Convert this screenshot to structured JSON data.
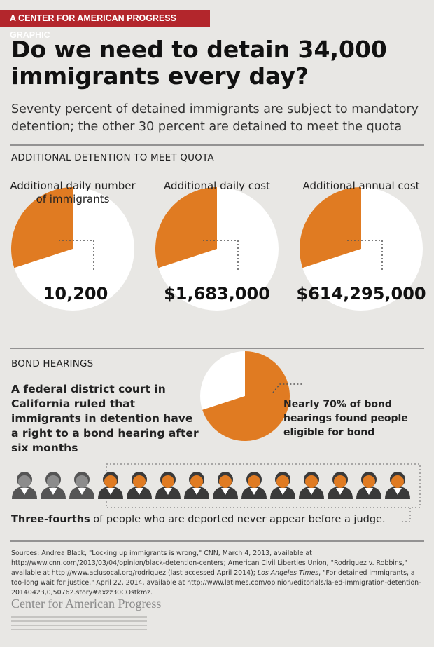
{
  "header": {
    "tag": "A CENTER FOR AMERICAN PROGRESS GRAPHIC",
    "title": "Do we need to detain 34,000 immigrants every day?",
    "subtitle": "Seventy percent of detained immigrants are subject to mandatory detention; the other 30 percent are detained to meet the quota"
  },
  "detention": {
    "heading": "ADDITIONAL DETENTION TO MEET QUOTA",
    "pies": [
      {
        "label": "Additional daily number of immigrants",
        "value": "10,200",
        "share": 30
      },
      {
        "label": "Additional daily cost",
        "value": "$1,683,000",
        "share": 30
      },
      {
        "label": "Additional annual cost",
        "value": "$614,295,000",
        "share": 30
      }
    ]
  },
  "bond": {
    "heading": "BOND HEARINGS",
    "text": "A federal district court in California ruled that immigrants in detention have a right to a bond hearing after six months",
    "pie_label": "Nearly 70% of bond hearings found people eligible for bond",
    "share": 70
  },
  "deportation": {
    "emphasis": "Three-fourths",
    "text": " of people who are deported never appear before a judge."
  },
  "sources": [
    "Sources: Andrea Black, \"Locking up immigrants is wrong,\" CNN, March 4, 2013, available at http://www.cnn.com/2013/03/04/opinion/black-detention-centers; American Civil Liberties Union, \"Rodriguez v. Robbins,\" available at http://www.aclusocal.org/rodriguez (last accessed April 2014); ",
    "Los Angeles Times",
    ", \"For detained immigrants, a too-long wait for justice,\" April 22, 2014, available at http://www.latimes.com/opinion/editorials/la-ed-immigration-detention-20140423,0,50762.story#axzz30COstkmz."
  ],
  "footer": {
    "logo": "Center for American Progress"
  }
}
